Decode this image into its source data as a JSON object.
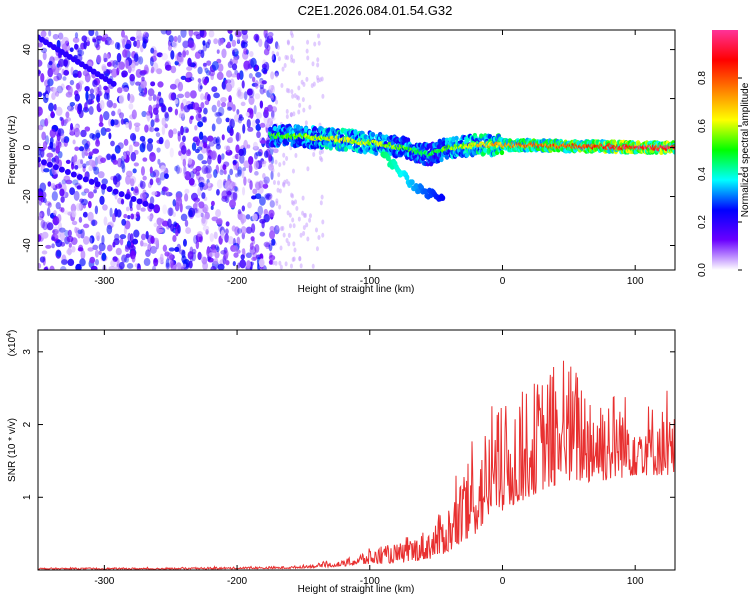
{
  "title": "C2E1.2026.084.01.54.G32",
  "chart_data": [
    {
      "type": "heatmap",
      "xlabel": "Height of straight line (km)",
      "ylabel": "Frequency (Hz)",
      "xlim": [
        -350,
        130
      ],
      "ylim": [
        -50,
        48
      ],
      "x_ticks": [
        -300,
        -200,
        -100,
        0,
        100
      ],
      "y_ticks": [
        -40,
        -20,
        0,
        20,
        40
      ],
      "colorbar": {
        "label": "Normalized spectral amplitude",
        "range": [
          0.0,
          1.0
        ],
        "ticks": [
          0.0,
          0.2,
          0.4,
          0.6,
          0.8
        ],
        "tick_labels": [
          "0.0",
          "0.2",
          "0.4",
          "0.6",
          "0.8"
        ],
        "colors": [
          "#ffffff",
          "#6a00ff",
          "#0000ff",
          "#00ffff",
          "#00ff00",
          "#ffff00",
          "#ff8000",
          "#ff0000",
          "#ff3399"
        ]
      },
      "noise_region": {
        "x_range": [
          -350,
          -170
        ],
        "y_range": [
          -50,
          48
        ],
        "amplitude_range": [
          0.0,
          0.25
        ]
      },
      "signal_track": [
        {
          "x": -175,
          "freq": 5,
          "amp": 0.55
        },
        {
          "x": -150,
          "freq": 4.5,
          "amp": 0.6
        },
        {
          "x": -125,
          "freq": 3.5,
          "amp": 0.7
        },
        {
          "x": -100,
          "freq": 2,
          "amp": 0.65
        },
        {
          "x": -75,
          "freq": 0,
          "amp": 0.6
        },
        {
          "x": -55,
          "freq": -3,
          "amp": 0.5
        },
        {
          "x": -40,
          "freq": 0,
          "amp": 0.6
        },
        {
          "x": -20,
          "freq": 1,
          "amp": 0.7
        },
        {
          "x": 0,
          "freq": 1,
          "amp": 0.8
        },
        {
          "x": 25,
          "freq": 1,
          "amp": 0.85
        },
        {
          "x": 50,
          "freq": 0.5,
          "amp": 0.9
        },
        {
          "x": 75,
          "freq": 0.5,
          "amp": 0.95
        },
        {
          "x": 100,
          "freq": 0,
          "amp": 1.0
        },
        {
          "x": 130,
          "freq": 0,
          "amp": 1.0
        }
      ],
      "signal_branch": [
        {
          "x": -90,
          "freq": -3,
          "amp": 0.45
        },
        {
          "x": -80,
          "freq": -8,
          "amp": 0.4
        },
        {
          "x": -70,
          "freq": -14,
          "amp": 0.35
        },
        {
          "x": -60,
          "freq": -18,
          "amp": 0.3
        },
        {
          "x": -45,
          "freq": -20,
          "amp": 0.25
        }
      ]
    },
    {
      "type": "line",
      "xlabel": "Height of straight line (km)",
      "ylabel": "SNR (10 * v/v)",
      "exponent_label": "(x10",
      "exponent": "4",
      "xlim": [
        -350,
        130
      ],
      "ylim": [
        0,
        3.3
      ],
      "x_ticks": [
        -300,
        -200,
        -100,
        0,
        100
      ],
      "y_ticks": [
        1,
        2,
        3
      ],
      "color": "#e83030",
      "envelope": [
        {
          "x": -350,
          "base": 0.01,
          "amp": 0.02
        },
        {
          "x": -250,
          "base": 0.01,
          "amp": 0.02
        },
        {
          "x": -160,
          "base": 0.02,
          "amp": 0.03
        },
        {
          "x": -120,
          "base": 0.05,
          "amp": 0.08
        },
        {
          "x": -100,
          "base": 0.08,
          "amp": 0.22
        },
        {
          "x": -75,
          "base": 0.1,
          "amp": 0.28
        },
        {
          "x": -55,
          "base": 0.15,
          "amp": 0.45
        },
        {
          "x": -40,
          "base": 0.25,
          "amp": 0.7
        },
        {
          "x": -25,
          "base": 0.4,
          "amp": 1.1
        },
        {
          "x": -10,
          "base": 0.7,
          "amp": 1.4
        },
        {
          "x": 10,
          "base": 0.9,
          "amp": 1.5
        },
        {
          "x": 30,
          "base": 1.1,
          "amp": 1.6
        },
        {
          "x": 50,
          "base": 1.2,
          "amp": 1.7
        },
        {
          "x": 70,
          "base": 1.2,
          "amp": 1.4
        },
        {
          "x": 100,
          "base": 1.3,
          "amp": 1.1
        },
        {
          "x": 130,
          "base": 1.3,
          "amp": 0.9
        }
      ]
    }
  ]
}
